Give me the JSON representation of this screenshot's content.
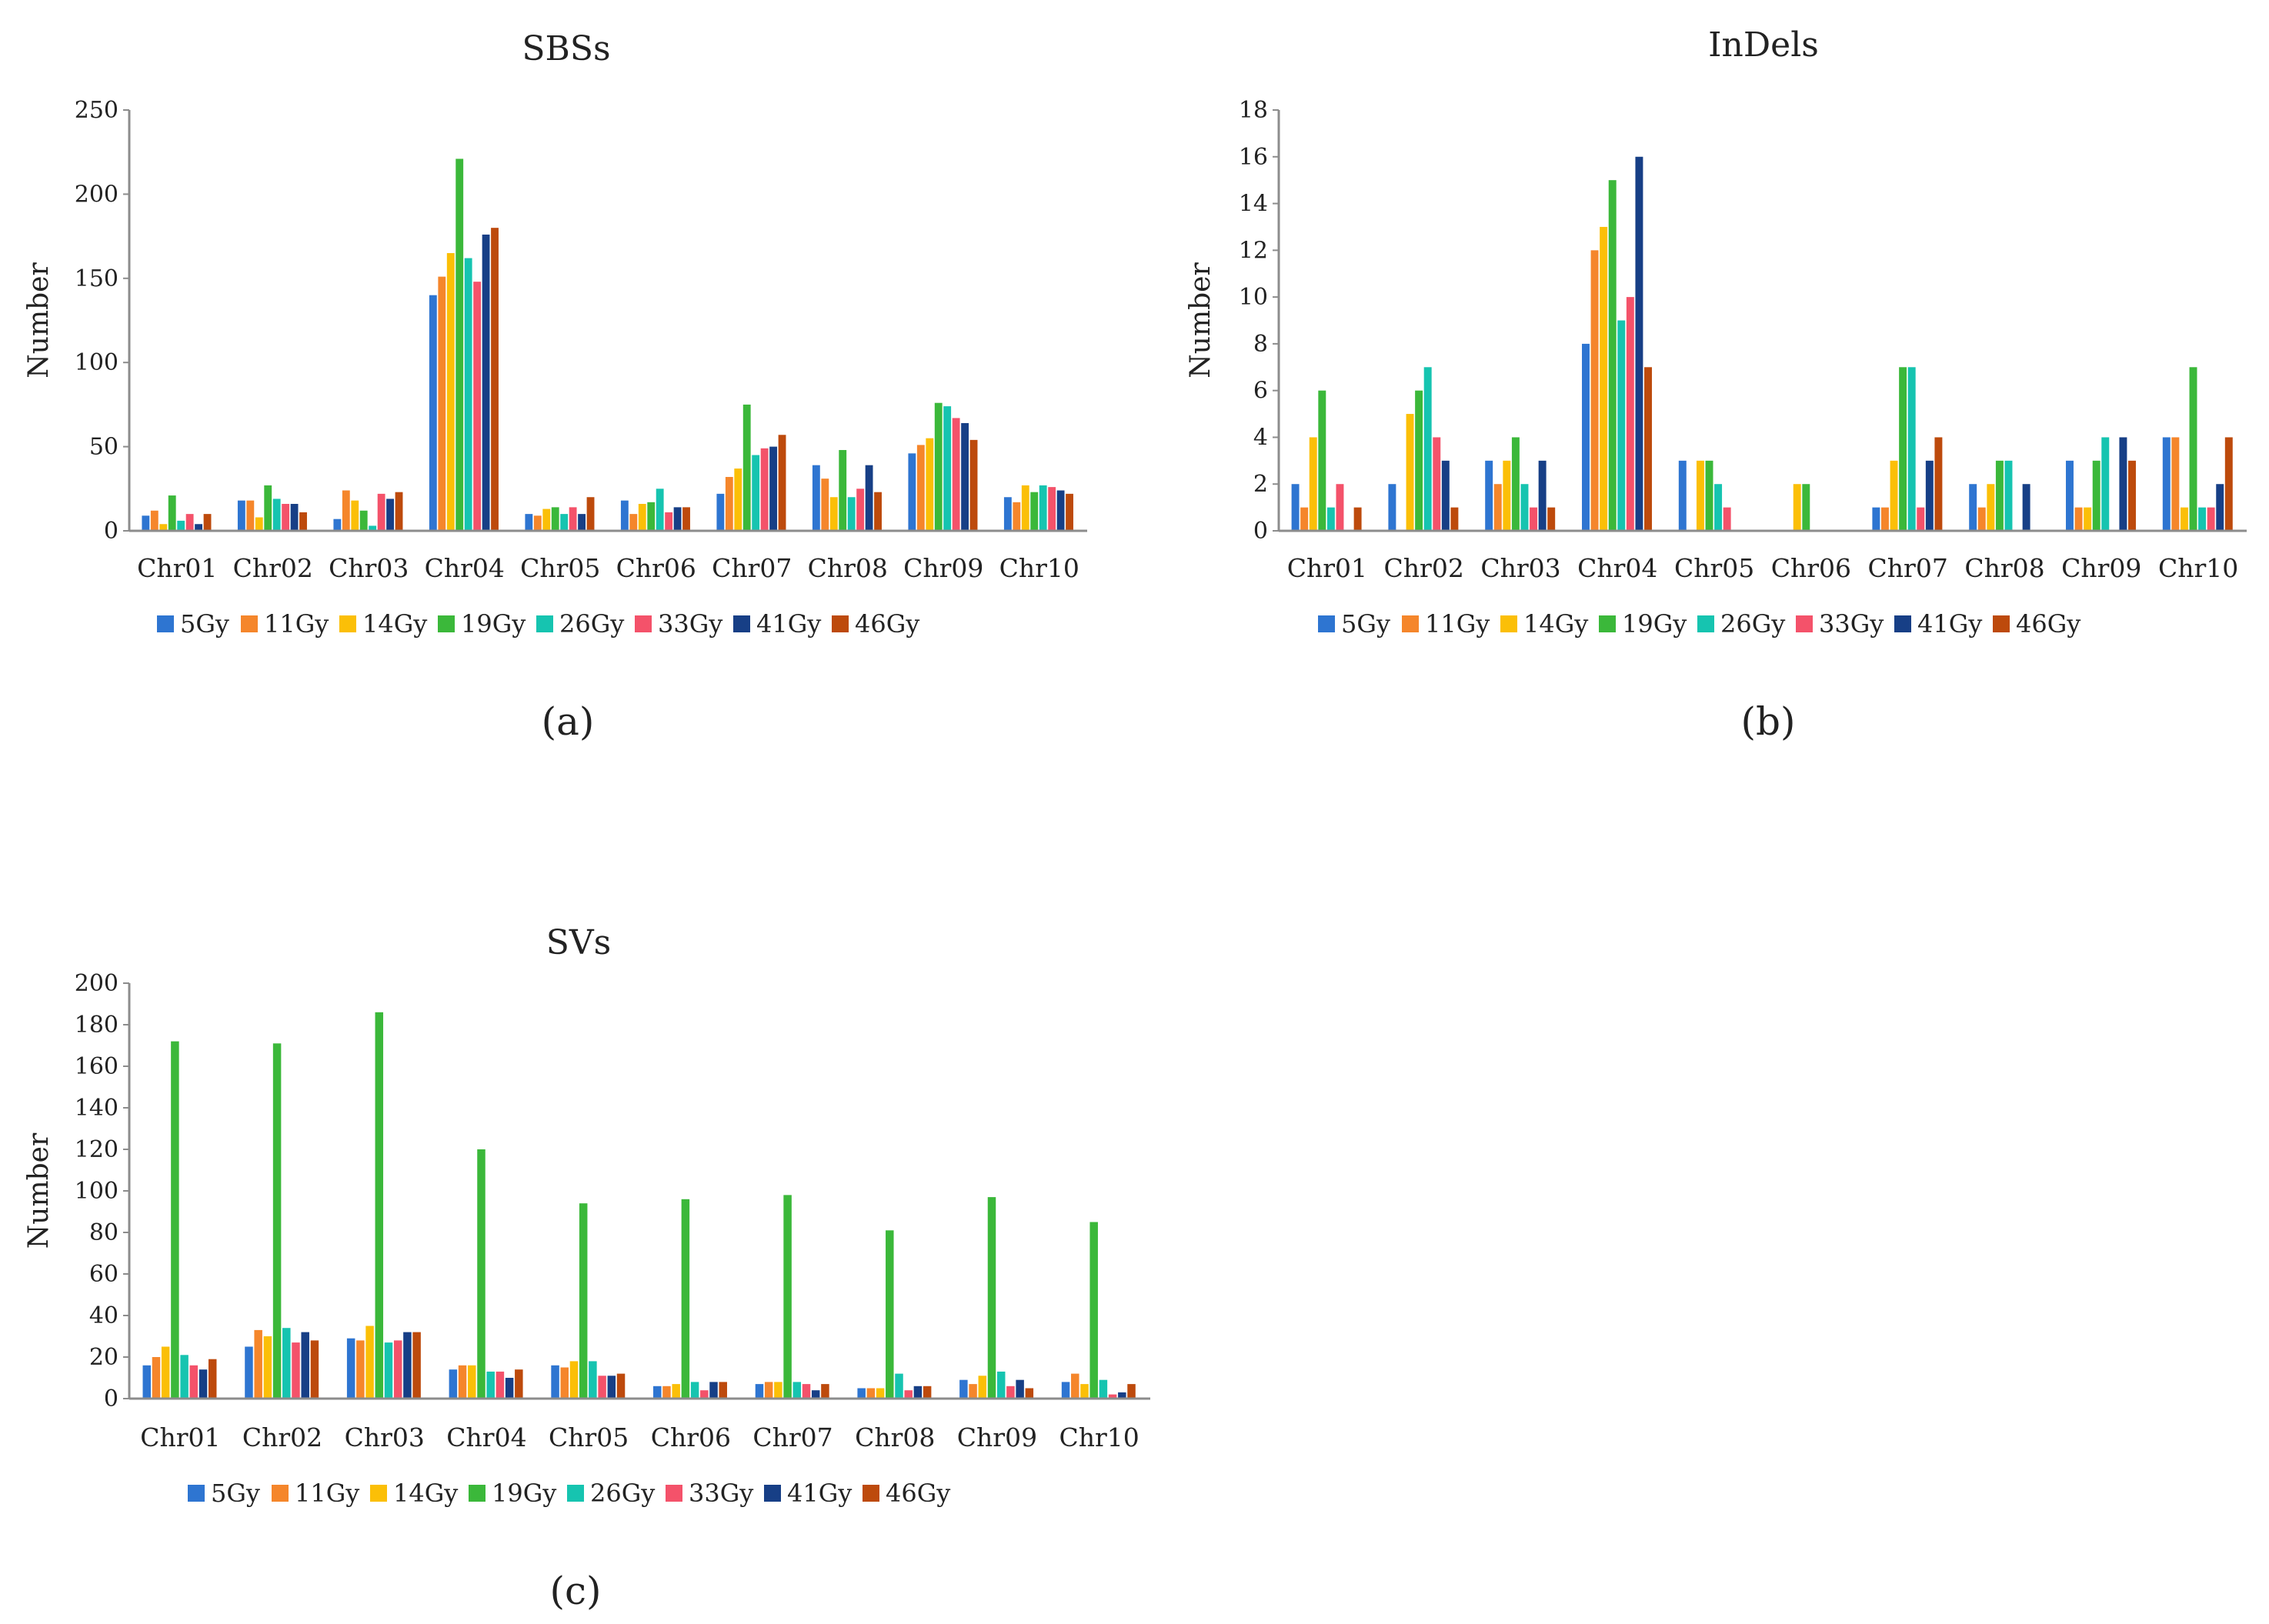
{
  "figure": {
    "series_names": [
      "5Gy",
      "11Gy",
      "14Gy",
      "19Gy",
      "26Gy",
      "33Gy",
      "41Gy",
      "46Gy"
    ],
    "series_colors": [
      "#2e75d1",
      "#f5862b",
      "#fbbf07",
      "#3bb83a",
      "#16c4b0",
      "#f4526a",
      "#173f86",
      "#bd4a0c"
    ]
  },
  "chart_data": [
    {
      "type": "bar",
      "title": "SBSs",
      "panel_label": "(a)",
      "xlabel": "",
      "ylabel": "Number",
      "ylim": [
        0,
        250
      ],
      "yticks": [
        "0",
        "50",
        "100",
        "150",
        "200",
        "250"
      ],
      "categories": [
        "Chr01",
        "Chr02",
        "Chr03",
        "Chr04",
        "Chr05",
        "Chr06",
        "Chr07",
        "Chr08",
        "Chr09",
        "Chr10"
      ],
      "series": [
        {
          "name": "5Gy",
          "values": [
            9,
            18,
            7,
            140,
            10,
            18,
            22,
            39,
            46,
            20
          ]
        },
        {
          "name": "11Gy",
          "values": [
            12,
            18,
            24,
            151,
            9,
            10,
            32,
            31,
            51,
            17
          ]
        },
        {
          "name": "14Gy",
          "values": [
            4,
            8,
            18,
            165,
            13,
            16,
            37,
            20,
            55,
            27
          ]
        },
        {
          "name": "19Gy",
          "values": [
            21,
            27,
            12,
            221,
            14,
            17,
            75,
            48,
            76,
            23
          ]
        },
        {
          "name": "26Gy",
          "values": [
            6,
            19,
            3,
            162,
            10,
            25,
            45,
            20,
            74,
            27
          ]
        },
        {
          "name": "33Gy",
          "values": [
            10,
            16,
            22,
            148,
            14,
            11,
            49,
            25,
            67,
            26
          ]
        },
        {
          "name": "41Gy",
          "values": [
            4,
            16,
            19,
            176,
            10,
            14,
            50,
            39,
            64,
            24
          ]
        },
        {
          "name": "46Gy",
          "values": [
            10,
            11,
            23,
            180,
            20,
            14,
            57,
            23,
            54,
            22
          ]
        }
      ]
    },
    {
      "type": "bar",
      "title": "InDels",
      "panel_label": "(b)",
      "xlabel": "",
      "ylabel": "Number",
      "ylim": [
        0,
        18
      ],
      "yticks": [
        "0",
        "2",
        "4",
        "6",
        "8",
        "10",
        "12",
        "14",
        "16",
        "18"
      ],
      "categories": [
        "Chr01",
        "Chr02",
        "Chr03",
        "Chr04",
        "Chr05",
        "Chr06",
        "Chr07",
        "Chr08",
        "Chr09",
        "Chr10"
      ],
      "series": [
        {
          "name": "5Gy",
          "values": [
            2,
            2,
            3,
            8,
            3,
            0,
            1,
            2,
            3,
            4
          ]
        },
        {
          "name": "11Gy",
          "values": [
            1,
            0,
            2,
            12,
            0,
            0,
            1,
            1,
            1,
            4
          ]
        },
        {
          "name": "14Gy",
          "values": [
            4,
            5,
            3,
            13,
            3,
            2,
            3,
            2,
            1,
            1
          ]
        },
        {
          "name": "19Gy",
          "values": [
            6,
            6,
            4,
            15,
            3,
            2,
            7,
            3,
            3,
            7
          ]
        },
        {
          "name": "26Gy",
          "values": [
            1,
            7,
            2,
            9,
            2,
            0,
            7,
            3,
            4,
            1
          ]
        },
        {
          "name": "33Gy",
          "values": [
            2,
            4,
            1,
            10,
            1,
            0,
            1,
            0,
            0,
            1
          ]
        },
        {
          "name": "41Gy",
          "values": [
            0,
            3,
            3,
            16,
            0,
            0,
            3,
            2,
            4,
            2
          ]
        },
        {
          "name": "46Gy",
          "values": [
            1,
            1,
            1,
            7,
            0,
            0,
            4,
            0,
            3,
            4
          ]
        }
      ]
    },
    {
      "type": "bar",
      "title": "SVs",
      "panel_label": "(c)",
      "xlabel": "",
      "ylabel": "Number",
      "ylim": [
        0,
        200
      ],
      "yticks": [
        "0",
        "20",
        "40",
        "60",
        "80",
        "100",
        "120",
        "140",
        "160",
        "180",
        "200"
      ],
      "categories": [
        "Chr01",
        "Chr02",
        "Chr03",
        "Chr04",
        "Chr05",
        "Chr06",
        "Chr07",
        "Chr08",
        "Chr09",
        "Chr10"
      ],
      "series": [
        {
          "name": "5Gy",
          "values": [
            16,
            25,
            29,
            14,
            16,
            6,
            7,
            5,
            9,
            8
          ]
        },
        {
          "name": "11Gy",
          "values": [
            20,
            33,
            28,
            16,
            15,
            6,
            8,
            5,
            7,
            12
          ]
        },
        {
          "name": "14Gy",
          "values": [
            25,
            30,
            35,
            16,
            18,
            7,
            8,
            5,
            11,
            7
          ]
        },
        {
          "name": "19Gy",
          "values": [
            172,
            171,
            186,
            120,
            94,
            96,
            98,
            81,
            97,
            85
          ]
        },
        {
          "name": "26Gy",
          "values": [
            21,
            34,
            27,
            13,
            18,
            8,
            8,
            12,
            13,
            9
          ]
        },
        {
          "name": "33Gy",
          "values": [
            16,
            27,
            28,
            13,
            11,
            4,
            7,
            4,
            6,
            2
          ]
        },
        {
          "name": "41Gy",
          "values": [
            14,
            32,
            32,
            10,
            11,
            8,
            4,
            6,
            9,
            3
          ]
        },
        {
          "name": "46Gy",
          "values": [
            19,
            28,
            32,
            14,
            12,
            8,
            7,
            6,
            5,
            7
          ]
        }
      ]
    }
  ]
}
